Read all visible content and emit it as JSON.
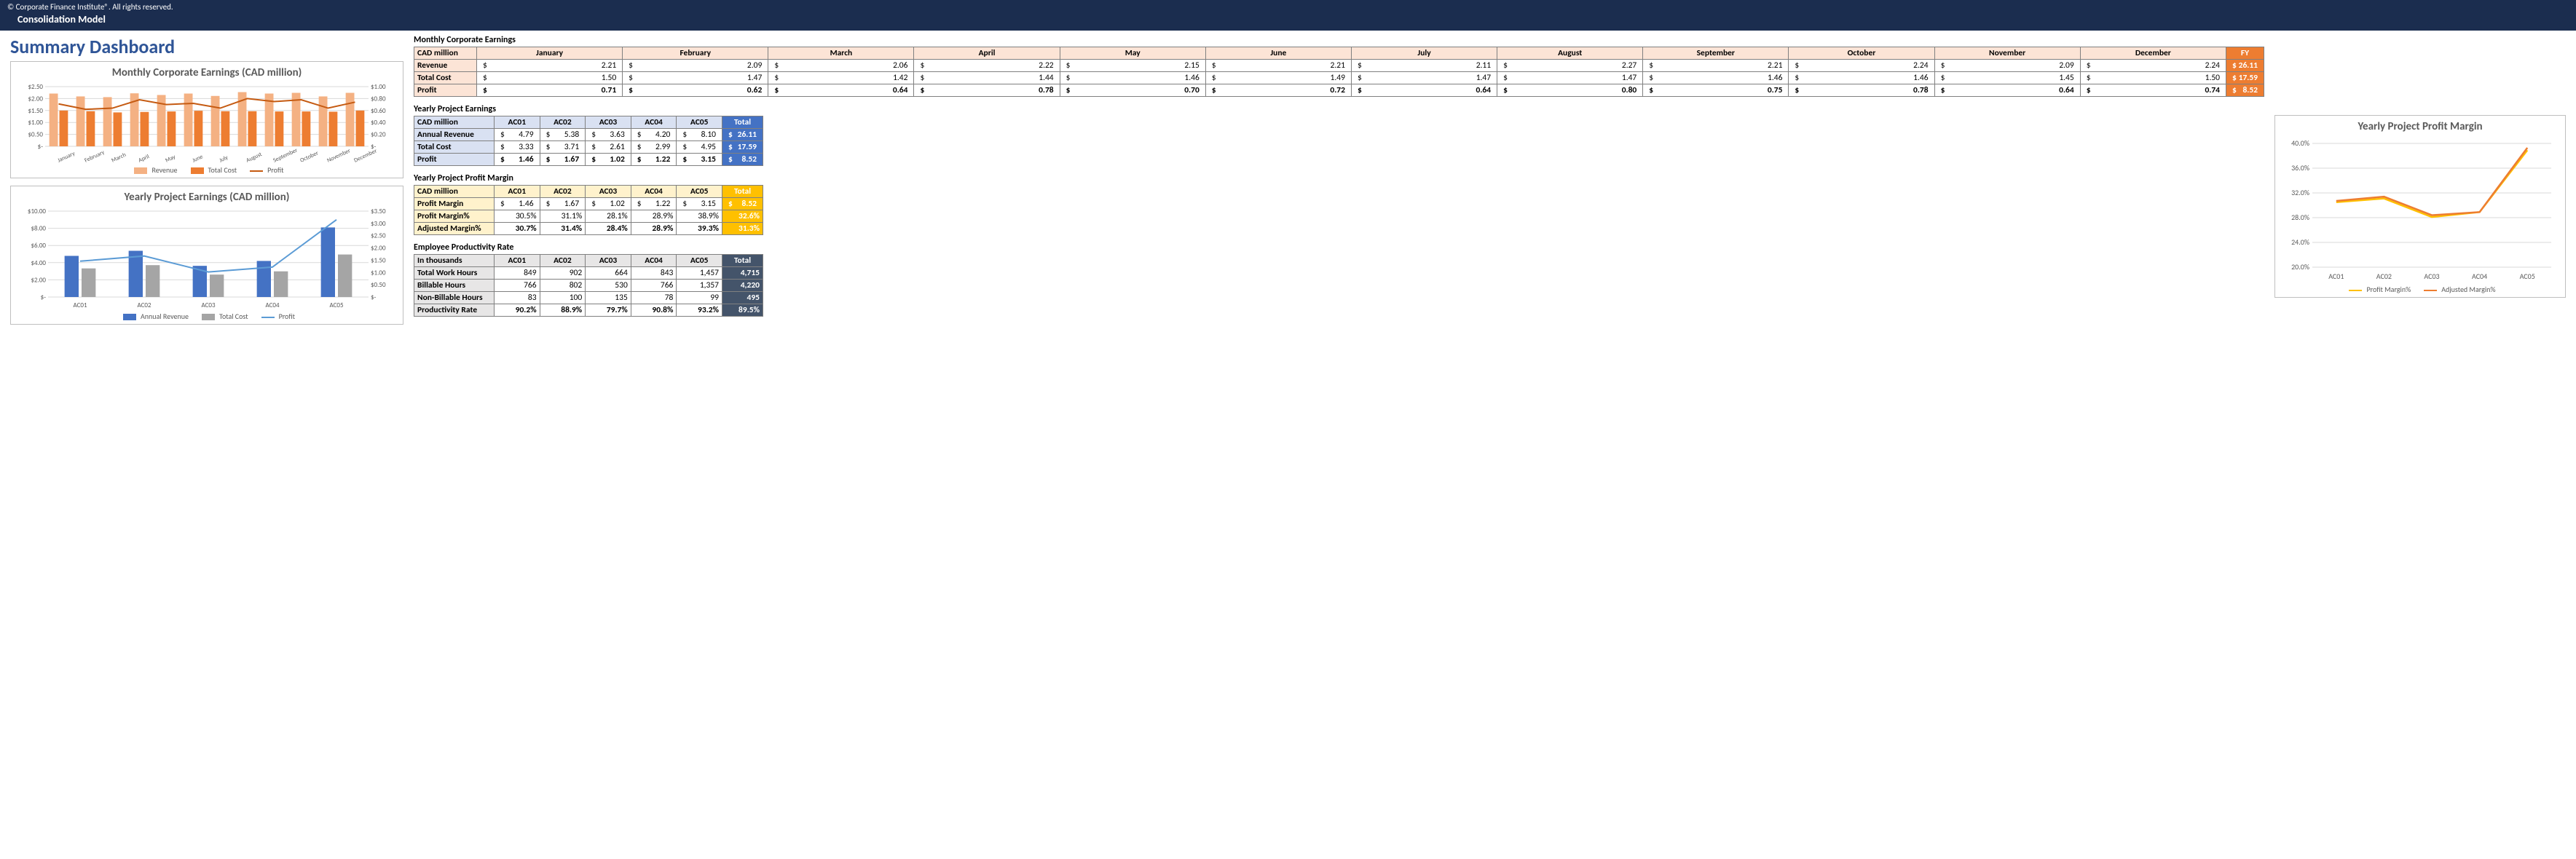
{
  "header": {
    "copyright": "© Corporate Finance Institute®. All rights reserved.",
    "subtitle": "Consolidation Model"
  },
  "title": "Summary Dashboard",
  "palette": {
    "revenue_bar": "#f4b183",
    "cost_bar": "#ed7d31",
    "profit_line": "#c55a11",
    "blue_bar": "#4472c4",
    "gray_bar": "#a5a5a5",
    "blue_line": "#5b9bd5",
    "gold_line": "#ffc000",
    "orange_line": "#ed7d31",
    "grid": "#d9d9d9",
    "axis": "#595959"
  },
  "chart1": {
    "title": "Monthly Corporate Earnings (CAD million)",
    "months": [
      "January",
      "February",
      "March",
      "April",
      "May",
      "June",
      "July",
      "August",
      "September",
      "October",
      "November",
      "December"
    ],
    "leftTicks": [
      "$-",
      "$0.50",
      "$1.00",
      "$1.50",
      "$2.00",
      "$2.50"
    ],
    "rightTicks": [
      "$-",
      "$0.20",
      "$0.40",
      "$0.60",
      "$0.80",
      "$1.00"
    ],
    "revenue": [
      2.21,
      2.09,
      2.06,
      2.22,
      2.15,
      2.21,
      2.11,
      2.27,
      2.21,
      2.24,
      2.09,
      2.24
    ],
    "cost": [
      1.5,
      1.47,
      1.42,
      1.44,
      1.46,
      1.49,
      1.47,
      1.47,
      1.46,
      1.46,
      1.45,
      1.5
    ],
    "profit": [
      0.71,
      0.62,
      0.64,
      0.78,
      0.7,
      0.72,
      0.64,
      0.8,
      0.75,
      0.78,
      0.64,
      0.74
    ],
    "leftMax": 2.5,
    "rightMax": 1.0,
    "legend": [
      "Revenue",
      "Total Cost",
      "Profit"
    ]
  },
  "chart2": {
    "title": "Yearly Project Earnings (CAD million)",
    "cats": [
      "AC01",
      "AC02",
      "AC03",
      "AC04",
      "AC05"
    ],
    "leftTicks": [
      "$-",
      "$2.00",
      "$4.00",
      "$6.00",
      "$8.00",
      "$10.00"
    ],
    "rightTicks": [
      "$-",
      "$0.50",
      "$1.00",
      "$1.50",
      "$2.00",
      "$2.50",
      "$3.00",
      "$3.50"
    ],
    "revenue": [
      4.79,
      5.38,
      3.63,
      4.2,
      8.1
    ],
    "cost": [
      3.33,
      3.71,
      2.61,
      2.99,
      4.95
    ],
    "profit": [
      1.46,
      1.67,
      1.02,
      1.22,
      3.15
    ],
    "leftMax": 10.0,
    "rightMax": 3.5,
    "legend": [
      "Annual Revenue",
      "Total Cost",
      "Profit"
    ]
  },
  "chart3": {
    "title": "Yearly Project Profit Margin",
    "cats": [
      "AC01",
      "AC02",
      "AC03",
      "AC04",
      "AC05"
    ],
    "yTicks": [
      "20.0%",
      "24.0%",
      "28.0%",
      "32.0%",
      "36.0%",
      "40.0%"
    ],
    "yMin": 20.0,
    "yMax": 40.0,
    "profitMargin": [
      30.5,
      31.1,
      28.1,
      28.9,
      38.9
    ],
    "adjMargin": [
      30.7,
      31.4,
      28.4,
      28.9,
      39.3
    ],
    "legend": [
      "Profit Margin%",
      "Adjusted Margin%"
    ]
  },
  "tbl1": {
    "title": "Monthly Corporate Earnings",
    "unit": "CAD million",
    "months": [
      "January",
      "February",
      "March",
      "April",
      "May",
      "June",
      "July",
      "August",
      "September",
      "October",
      "November",
      "December"
    ],
    "fy": "FY",
    "rows": [
      {
        "label": "Revenue",
        "vals": [
          "2.21",
          "2.09",
          "2.06",
          "2.22",
          "2.15",
          "2.21",
          "2.11",
          "2.27",
          "2.21",
          "2.24",
          "2.09",
          "2.24"
        ],
        "fy": "26.11",
        "bold": false
      },
      {
        "label": "Total Cost",
        "vals": [
          "1.50",
          "1.47",
          "1.42",
          "1.44",
          "1.46",
          "1.49",
          "1.47",
          "1.47",
          "1.46",
          "1.46",
          "1.45",
          "1.50"
        ],
        "fy": "17.59",
        "bold": false
      },
      {
        "label": "Profit",
        "vals": [
          "0.71",
          "0.62",
          "0.64",
          "0.78",
          "0.70",
          "0.72",
          "0.64",
          "0.80",
          "0.75",
          "0.78",
          "0.64",
          "0.74"
        ],
        "fy": "8.52",
        "bold": true
      }
    ]
  },
  "tbl2": {
    "title": "Yearly Project Earnings",
    "unit": "CAD million",
    "cols": [
      "AC01",
      "AC02",
      "AC03",
      "AC04",
      "AC05"
    ],
    "tot": "Total",
    "rows": [
      {
        "label": "Annual Revenue",
        "vals": [
          "4.79",
          "5.38",
          "3.63",
          "4.20",
          "8.10"
        ],
        "tot": "26.11",
        "bold": false
      },
      {
        "label": "Total Cost",
        "vals": [
          "3.33",
          "3.71",
          "2.61",
          "2.99",
          "4.95"
        ],
        "tot": "17.59",
        "bold": false
      },
      {
        "label": "Profit",
        "vals": [
          "1.46",
          "1.67",
          "1.02",
          "1.22",
          "3.15"
        ],
        "tot": "8.52",
        "bold": true
      }
    ]
  },
  "tbl3": {
    "title": "Yearly Project Profit Margin",
    "unit": "CAD million",
    "cols": [
      "AC01",
      "AC02",
      "AC03",
      "AC04",
      "AC05"
    ],
    "tot": "Total",
    "rows": [
      {
        "label": "Profit Margin",
        "vals": [
          "1.46",
          "1.67",
          "1.02",
          "1.22",
          "3.15"
        ],
        "tot": "8.52",
        "currency": true,
        "bold": false
      },
      {
        "label": "Profit Margin%",
        "vals": [
          "30.5%",
          "31.1%",
          "28.1%",
          "28.9%",
          "38.9%"
        ],
        "tot": "32.6%",
        "currency": false,
        "bold": false
      },
      {
        "label": "Adjusted Margin%",
        "vals": [
          "30.7%",
          "31.4%",
          "28.4%",
          "28.9%",
          "39.3%"
        ],
        "tot": "31.3%",
        "currency": false,
        "bold": true
      }
    ]
  },
  "tbl4": {
    "title": "Employee Productivity Rate",
    "unit": "In thousands",
    "cols": [
      "AC01",
      "AC02",
      "AC03",
      "AC04",
      "AC05"
    ],
    "tot": "Total",
    "rows": [
      {
        "label": "Total Work Hours",
        "vals": [
          "849",
          "902",
          "664",
          "843",
          "1,457"
        ],
        "tot": "4,715",
        "bold": false
      },
      {
        "label": "Billable Hours",
        "vals": [
          "766",
          "802",
          "530",
          "766",
          "1,357"
        ],
        "tot": "4,220",
        "bold": false
      },
      {
        "label": "Non-Billable Hours",
        "vals": [
          "83",
          "100",
          "135",
          "78",
          "99"
        ],
        "tot": "495",
        "bold": false
      },
      {
        "label": "Productivity Rate",
        "vals": [
          "90.2%",
          "88.9%",
          "79.7%",
          "90.8%",
          "93.2%"
        ],
        "tot": "89.5%",
        "bold": true
      }
    ]
  }
}
